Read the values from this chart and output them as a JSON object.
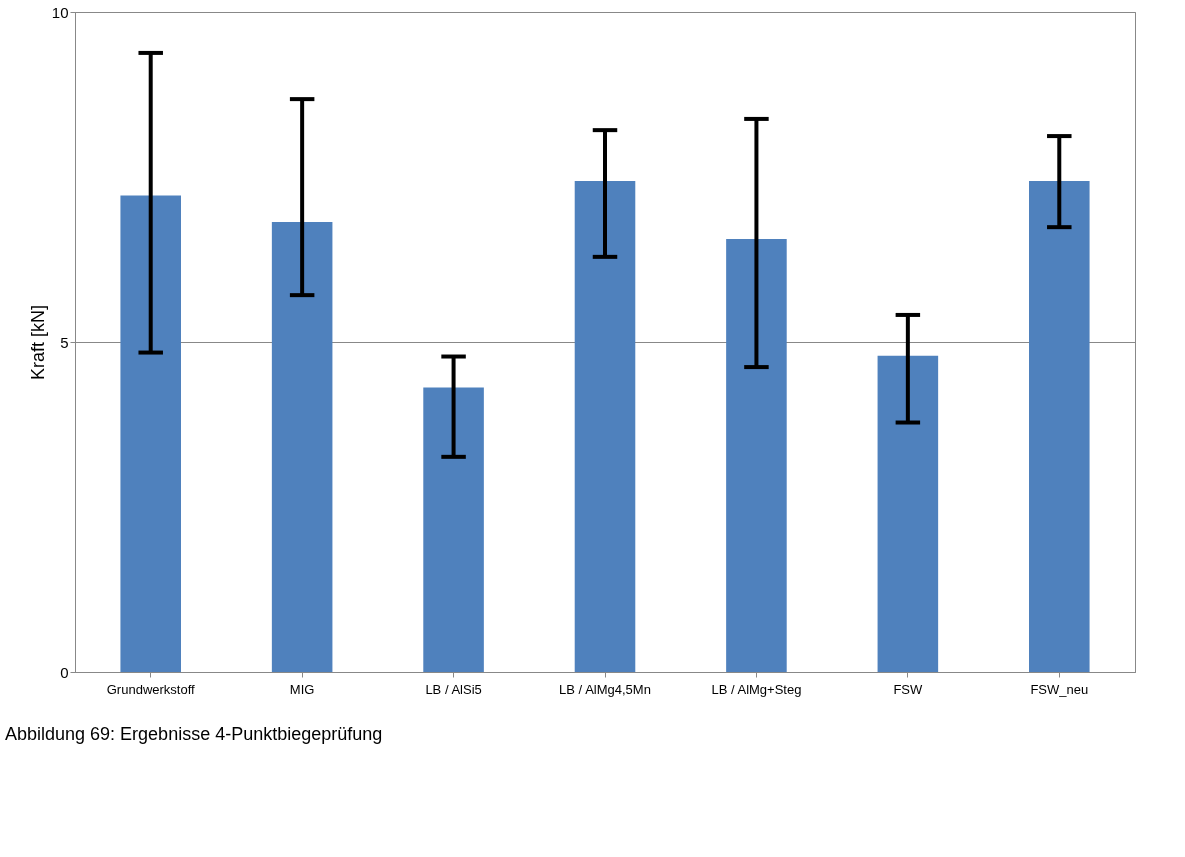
{
  "chart_data": {
    "type": "bar",
    "ylabel": "Kraft [kN]",
    "categories": [
      "Grundwerkstoff",
      "MIG",
      "LB / AlSi5",
      "LB / AlMg4,5Mn",
      "LB / AlMg+Steg",
      "FSW",
      "FSW_neu"
    ],
    "values": [
      7.22,
      6.82,
      4.31,
      7.44,
      6.56,
      4.79,
      7.44
    ],
    "errors": [
      [
        4.84,
        9.38
      ],
      [
        5.71,
        8.68
      ],
      [
        3.26,
        4.78
      ],
      [
        6.29,
        8.21
      ],
      [
        4.62,
        8.38
      ],
      [
        3.78,
        5.41
      ],
      [
        6.74,
        8.12
      ]
    ],
    "color": "#4f81bd",
    "ylim": [
      0,
      10
    ],
    "yticks": [
      0,
      5,
      10
    ],
    "grid": "y",
    "annotations": [
      "Abbildung 69: Ergebnisse 4-Punktbiegeprüfung"
    ]
  }
}
